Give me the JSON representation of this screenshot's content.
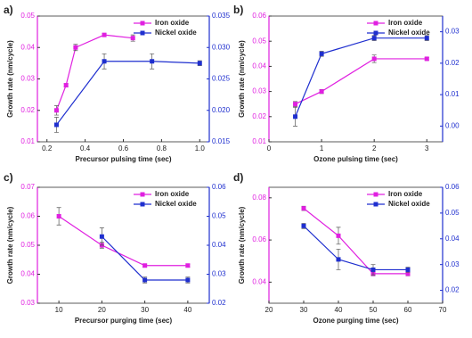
{
  "chart_data": [
    {
      "type": "line",
      "label": "a)",
      "xlabel": "Precursor pulsing time (sec)",
      "ylabel": "Growth rate (nm/cycle)",
      "xlim": [
        0.15,
        1.05
      ],
      "xticks": [
        0.2,
        0.4,
        0.6,
        0.8,
        {
          "value": 1.0,
          "label": "1.0"
        }
      ],
      "ylim": [
        0.01,
        0.05
      ],
      "yticks": [
        0.01,
        0.02,
        0.03,
        0.04,
        0.05
      ],
      "y2lim": [
        0.015,
        0.035
      ],
      "y2ticks": [
        0.015,
        {
          "value": 0.02,
          "label": "0.020"
        },
        0.025,
        {
          "value": 0.03,
          "label": "0.030"
        },
        0.035
      ],
      "legend": "upper right",
      "series": [
        {
          "name": "Iron oxide",
          "color": "#e020e0",
          "x": [
            0.25,
            0.3,
            0.35,
            0.5,
            0.65
          ],
          "values": [
            0.02,
            0.028,
            0.04,
            0.044,
            0.043
          ],
          "errors": [
            0.0015,
            0.0005,
            0.001,
            0.0005,
            0.001
          ]
        },
        {
          "name": "Nickel oxide",
          "color": "#1f2fcf",
          "axis": "y2",
          "x": [
            0.25,
            0.5,
            0.75,
            1.0
          ],
          "values": [
            0.0177,
            0.0278,
            0.0278,
            0.0275
          ],
          "errors": [
            0.0012,
            0.0012,
            0.0012,
            0.0004
          ]
        }
      ]
    },
    {
      "type": "line",
      "label": "b)",
      "xlabel": "Ozone pulsing time (sec)",
      "ylabel": "Growth rate (nm/cycle)",
      "xlim": [
        0,
        3.3
      ],
      "xticks": [
        0,
        1,
        2,
        3
      ],
      "ylim": [
        0.01,
        0.06
      ],
      "yticks": [
        0.01,
        0.02,
        0.03,
        0.04,
        0.05,
        0.06
      ],
      "y2lim": [
        -0.005,
        0.035
      ],
      "y2ticks": [
        {
          "value": 0,
          "label": "0.00"
        },
        0.01,
        0.02,
        0.03
      ],
      "legend": "upper right",
      "series": [
        {
          "name": "Iron oxide",
          "color": "#e020e0",
          "x": [
            0.5,
            1,
            2,
            3
          ],
          "values": [
            0.025,
            0.03,
            0.043,
            0.043
          ],
          "errors": [
            0.001,
            0.0008,
            0.0015,
            0.0005
          ]
        },
        {
          "name": "Nickel oxide",
          "color": "#1f2fcf",
          "axis": "y2",
          "x": [
            0.5,
            1,
            2,
            3
          ],
          "values": [
            0.003,
            0.023,
            0.028,
            0.028
          ],
          "errors": [
            0.003,
            0.0008,
            0.0008,
            0.0008
          ]
        }
      ]
    },
    {
      "type": "line",
      "label": "c)",
      "xlabel": "Precursor purging time (sec)",
      "ylabel": "Growth rate (nm/cycle)",
      "xlim": [
        5,
        45
      ],
      "xticks": [
        10,
        20,
        30,
        40
      ],
      "ylim": [
        0.03,
        0.07
      ],
      "yticks": [
        0.03,
        0.04,
        0.05,
        0.06,
        0.07
      ],
      "y2lim": [
        0.02,
        0.06
      ],
      "y2ticks": [
        0.02,
        0.03,
        0.04,
        0.05,
        0.06
      ],
      "legend": "upper right",
      "series": [
        {
          "name": "Iron oxide",
          "color": "#e020e0",
          "x": [
            10,
            20,
            30,
            40
          ],
          "values": [
            0.06,
            0.05,
            0.043,
            0.043
          ],
          "errors": [
            0.003,
            0.001,
            0.0005,
            0.0005
          ]
        },
        {
          "name": "Nickel oxide",
          "color": "#1f2fcf",
          "axis": "y2",
          "x": [
            20,
            30,
            40
          ],
          "values": [
            0.043,
            0.028,
            0.028
          ],
          "errors": [
            0.003,
            0.001,
            0.001
          ]
        }
      ]
    },
    {
      "type": "line",
      "label": "d)",
      "xlabel": "Ozone purging time (sec)",
      "ylabel": "Growth rate (nm/cycle)",
      "xlim": [
        20,
        70
      ],
      "xticks": [
        20,
        30,
        40,
        50,
        60,
        70
      ],
      "ylim": [
        0.03,
        0.085
      ],
      "yticks": [
        0.04,
        0.06,
        0.08
      ],
      "y2lim": [
        0.015,
        0.06
      ],
      "y2ticks": [
        0.02,
        0.03,
        0.04,
        0.05,
        0.06
      ],
      "legend": "upper right",
      "series": [
        {
          "name": "Iron oxide",
          "color": "#e020e0",
          "x": [
            30,
            40,
            50,
            60
          ],
          "values": [
            0.075,
            0.062,
            0.044,
            0.044
          ],
          "errors": [
            0.001,
            0.004,
            0.001,
            0.001
          ]
        },
        {
          "name": "Nickel oxide",
          "color": "#1f2fcf",
          "axis": "y2",
          "x": [
            30,
            40,
            50,
            60
          ],
          "values": [
            0.045,
            0.032,
            0.028,
            0.028
          ],
          "errors": [
            0.001,
            0.004,
            0.002,
            0.001
          ]
        }
      ]
    }
  ]
}
